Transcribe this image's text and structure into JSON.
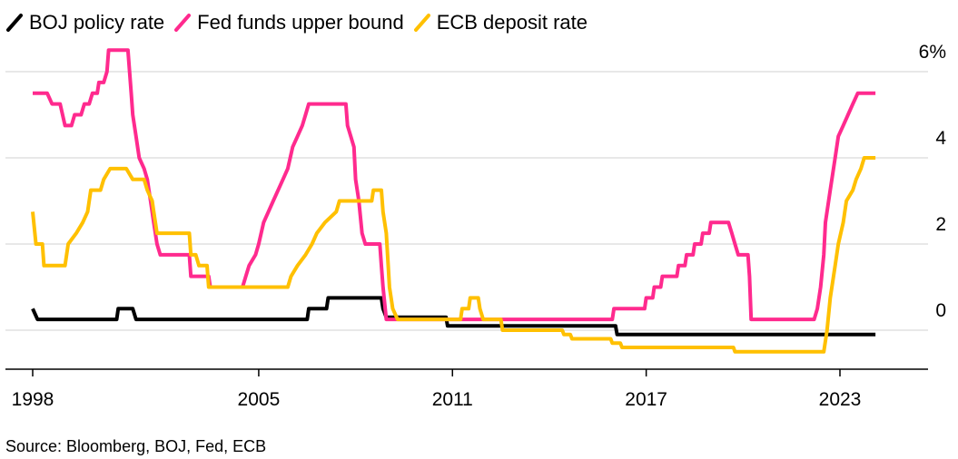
{
  "legend": [
    {
      "label": "BOJ policy rate",
      "color": "#000000"
    },
    {
      "label": "Fed funds upper bound",
      "color": "#ff2a8e"
    },
    {
      "label": "ECB deposit rate",
      "color": "#ffc000"
    }
  ],
  "source": "Source: Bloomberg, BOJ, Fed, ECB",
  "chart_data": {
    "type": "line",
    "title": "",
    "xlabel": "",
    "ylabel": "",
    "xlim": [
      1998.0,
      2026.0
    ],
    "ylim": [
      -1,
      6.5
    ],
    "x_ticks": [
      1998,
      2005,
      2011,
      2017,
      2023
    ],
    "x_tick_labels": [
      "1998",
      "2005",
      "2011",
      "2017",
      "2023"
    ],
    "y_ticks": [
      0,
      2,
      4,
      6
    ],
    "y_tick_labels": [
      "0",
      "2",
      "4",
      "6%"
    ],
    "grid": "horizontal",
    "legend_position": "top-left",
    "series": [
      {
        "name": "BOJ policy rate",
        "color": "#000000",
        "points": [
          [
            1998.0,
            0.5
          ],
          [
            1998.15,
            0.25
          ],
          [
            2000.6,
            0.25
          ],
          [
            2000.65,
            0.5
          ],
          [
            2001.1,
            0.5
          ],
          [
            2001.2,
            0.25
          ],
          [
            2006.5,
            0.25
          ],
          [
            2006.55,
            0.5
          ],
          [
            2007.1,
            0.5
          ],
          [
            2007.15,
            0.75
          ],
          [
            2008.8,
            0.75
          ],
          [
            2008.85,
            0.5
          ],
          [
            2008.95,
            0.3
          ],
          [
            2010.8,
            0.3
          ],
          [
            2010.85,
            0.1
          ],
          [
            2016.05,
            0.1
          ],
          [
            2016.1,
            -0.1
          ],
          [
            2024.1,
            -0.1
          ]
        ]
      },
      {
        "name": "Fed funds upper bound",
        "color": "#ff2a8e",
        "points": [
          [
            1998.0,
            5.5
          ],
          [
            1998.45,
            5.5
          ],
          [
            1998.6,
            5.25
          ],
          [
            1998.85,
            5.25
          ],
          [
            1999.0,
            4.75
          ],
          [
            1999.2,
            4.75
          ],
          [
            1999.3,
            5.0
          ],
          [
            1999.5,
            5.0
          ],
          [
            1999.6,
            5.25
          ],
          [
            1999.75,
            5.25
          ],
          [
            1999.85,
            5.5
          ],
          [
            2000.0,
            5.5
          ],
          [
            2000.05,
            5.75
          ],
          [
            2000.2,
            5.75
          ],
          [
            2000.3,
            6.0
          ],
          [
            2000.35,
            6.5
          ],
          [
            2000.95,
            6.5
          ],
          [
            2001.0,
            6.0
          ],
          [
            2001.05,
            5.5
          ],
          [
            2001.1,
            5.0
          ],
          [
            2001.2,
            4.5
          ],
          [
            2001.3,
            4.0
          ],
          [
            2001.45,
            3.75
          ],
          [
            2001.55,
            3.5
          ],
          [
            2001.65,
            3.0
          ],
          [
            2001.75,
            2.5
          ],
          [
            2001.85,
            2.0
          ],
          [
            2001.95,
            1.75
          ],
          [
            2002.85,
            1.75
          ],
          [
            2002.9,
            1.25
          ],
          [
            2003.45,
            1.25
          ],
          [
            2003.5,
            1.0
          ],
          [
            2004.5,
            1.0
          ],
          [
            2004.6,
            1.25
          ],
          [
            2004.7,
            1.5
          ],
          [
            2004.9,
            1.75
          ],
          [
            2005.0,
            2.0
          ],
          [
            2005.15,
            2.5
          ],
          [
            2005.3,
            2.75
          ],
          [
            2005.45,
            3.0
          ],
          [
            2005.6,
            3.25
          ],
          [
            2005.75,
            3.5
          ],
          [
            2005.9,
            3.75
          ],
          [
            2006.05,
            4.25
          ],
          [
            2006.2,
            4.5
          ],
          [
            2006.35,
            4.75
          ],
          [
            2006.45,
            5.0
          ],
          [
            2006.55,
            5.25
          ],
          [
            2007.7,
            5.25
          ],
          [
            2007.75,
            4.75
          ],
          [
            2007.85,
            4.5
          ],
          [
            2007.95,
            4.25
          ],
          [
            2008.0,
            3.5
          ],
          [
            2008.1,
            3.0
          ],
          [
            2008.2,
            2.25
          ],
          [
            2008.3,
            2.0
          ],
          [
            2008.75,
            2.0
          ],
          [
            2008.8,
            1.5
          ],
          [
            2008.85,
            1.0
          ],
          [
            2008.95,
            0.25
          ],
          [
            2015.95,
            0.25
          ],
          [
            2016.0,
            0.5
          ],
          [
            2016.95,
            0.5
          ],
          [
            2017.0,
            0.75
          ],
          [
            2017.2,
            0.75
          ],
          [
            2017.25,
            1.0
          ],
          [
            2017.45,
            1.0
          ],
          [
            2017.5,
            1.25
          ],
          [
            2017.95,
            1.25
          ],
          [
            2018.0,
            1.5
          ],
          [
            2018.2,
            1.5
          ],
          [
            2018.25,
            1.75
          ],
          [
            2018.45,
            1.75
          ],
          [
            2018.5,
            2.0
          ],
          [
            2018.7,
            2.0
          ],
          [
            2018.75,
            2.25
          ],
          [
            2018.95,
            2.25
          ],
          [
            2019.0,
            2.5
          ],
          [
            2019.55,
            2.5
          ],
          [
            2019.65,
            2.25
          ],
          [
            2019.75,
            2.0
          ],
          [
            2019.85,
            1.75
          ],
          [
            2020.15,
            1.75
          ],
          [
            2020.2,
            1.25
          ],
          [
            2020.25,
            0.25
          ],
          [
            2022.2,
            0.25
          ],
          [
            2022.3,
            0.5
          ],
          [
            2022.4,
            1.0
          ],
          [
            2022.5,
            1.75
          ],
          [
            2022.55,
            2.5
          ],
          [
            2022.7,
            3.25
          ],
          [
            2022.85,
            4.0
          ],
          [
            2022.95,
            4.5
          ],
          [
            2023.1,
            4.75
          ],
          [
            2023.25,
            5.0
          ],
          [
            2023.4,
            5.25
          ],
          [
            2023.55,
            5.5
          ],
          [
            2024.1,
            5.5
          ]
        ]
      },
      {
        "name": "ECB deposit rate",
        "color": "#ffc000",
        "points": [
          [
            1998.0,
            2.75
          ],
          [
            1998.1,
            2.0
          ],
          [
            1998.3,
            2.0
          ],
          [
            1998.35,
            1.5
          ],
          [
            1999.0,
            1.5
          ],
          [
            1999.1,
            2.0
          ],
          [
            1999.35,
            2.25
          ],
          [
            1999.55,
            2.5
          ],
          [
            1999.7,
            2.75
          ],
          [
            1999.8,
            3.25
          ],
          [
            2000.1,
            3.25
          ],
          [
            2000.2,
            3.5
          ],
          [
            2000.4,
            3.75
          ],
          [
            2000.9,
            3.75
          ],
          [
            2001.1,
            3.5
          ],
          [
            2001.45,
            3.5
          ],
          [
            2001.55,
            3.25
          ],
          [
            2001.7,
            3.0
          ],
          [
            2001.75,
            2.75
          ],
          [
            2001.85,
            2.25
          ],
          [
            2002.85,
            2.25
          ],
          [
            2002.9,
            1.75
          ],
          [
            2003.05,
            1.75
          ],
          [
            2003.15,
            1.5
          ],
          [
            2003.4,
            1.5
          ],
          [
            2003.45,
            1.0
          ],
          [
            2005.9,
            1.0
          ],
          [
            2006.0,
            1.25
          ],
          [
            2006.2,
            1.5
          ],
          [
            2006.45,
            1.75
          ],
          [
            2006.65,
            2.0
          ],
          [
            2006.8,
            2.25
          ],
          [
            2007.05,
            2.5
          ],
          [
            2007.4,
            2.75
          ],
          [
            2007.5,
            3.0
          ],
          [
            2008.5,
            3.0
          ],
          [
            2008.55,
            3.25
          ],
          [
            2008.8,
            3.25
          ],
          [
            2008.85,
            2.75
          ],
          [
            2008.95,
            2.25
          ],
          [
            2009.05,
            1.0
          ],
          [
            2009.15,
            0.5
          ],
          [
            2009.3,
            0.25
          ],
          [
            2011.25,
            0.25
          ],
          [
            2011.3,
            0.5
          ],
          [
            2011.5,
            0.5
          ],
          [
            2011.55,
            0.75
          ],
          [
            2011.8,
            0.75
          ],
          [
            2011.85,
            0.5
          ],
          [
            2011.95,
            0.25
          ],
          [
            2012.5,
            0.25
          ],
          [
            2012.55,
            0.0
          ],
          [
            2014.4,
            0.0
          ],
          [
            2014.45,
            -0.1
          ],
          [
            2014.65,
            -0.1
          ],
          [
            2014.7,
            -0.2
          ],
          [
            2015.9,
            -0.2
          ],
          [
            2015.95,
            -0.3
          ],
          [
            2016.2,
            -0.3
          ],
          [
            2016.25,
            -0.4
          ],
          [
            2019.7,
            -0.4
          ],
          [
            2019.75,
            -0.5
          ],
          [
            2022.5,
            -0.5
          ],
          [
            2022.6,
            0.0
          ],
          [
            2022.7,
            0.75
          ],
          [
            2022.85,
            1.5
          ],
          [
            2022.95,
            2.0
          ],
          [
            2023.1,
            2.5
          ],
          [
            2023.2,
            3.0
          ],
          [
            2023.4,
            3.25
          ],
          [
            2023.5,
            3.5
          ],
          [
            2023.65,
            3.75
          ],
          [
            2023.75,
            4.0
          ],
          [
            2024.1,
            4.0
          ]
        ]
      }
    ]
  }
}
